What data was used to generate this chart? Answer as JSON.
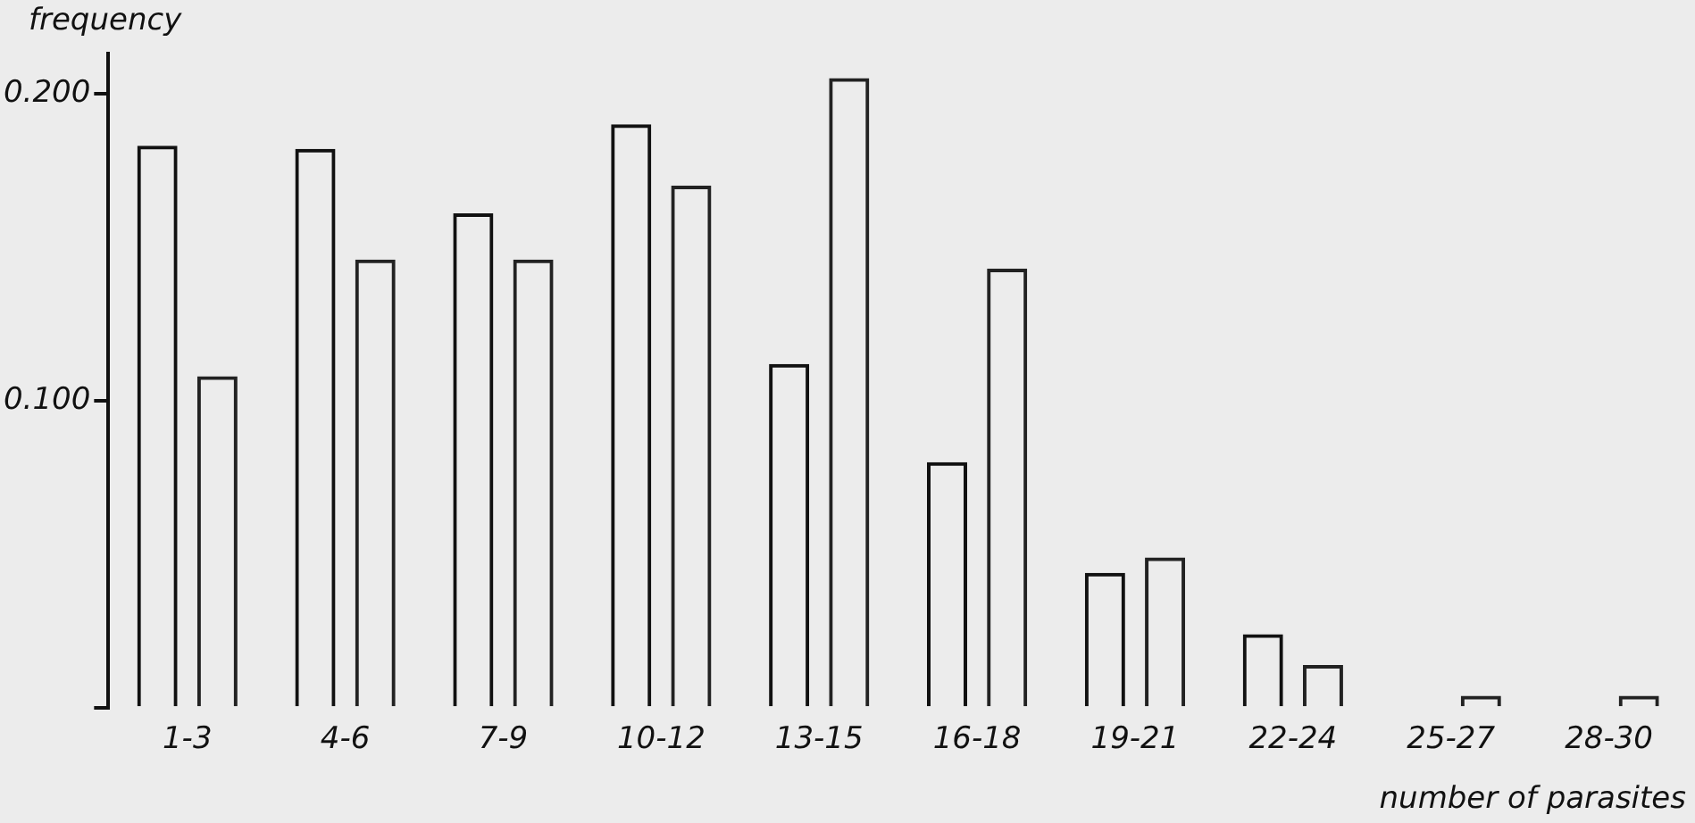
{
  "chart_data": {
    "type": "bar",
    "xlabel": "number of parasites",
    "ylabel": "frequency",
    "categories": [
      "1-3",
      "4-6",
      "7-9",
      "10-12",
      "13-15",
      "16-18",
      "19-21",
      "22-24",
      "25-27",
      "28-30"
    ],
    "series": [
      {
        "color": "#111111",
        "values": [
          0.183,
          0.182,
          0.161,
          0.19,
          0.112,
          0.08,
          0.044,
          0.024,
          null,
          null
        ]
      },
      {
        "color": "#222222",
        "values": [
          0.108,
          0.146,
          0.146,
          0.17,
          0.205,
          0.143,
          0.049,
          0.014,
          0.004,
          0.004
        ]
      }
    ],
    "ylim": [
      0,
      0.213
    ],
    "yticks": [
      {
        "value": 0,
        "label": null
      },
      {
        "value": 0.1,
        "label": "0.100"
      },
      {
        "value": 0.2,
        "label": "0.200"
      }
    ],
    "grid": false,
    "legend": false
  }
}
